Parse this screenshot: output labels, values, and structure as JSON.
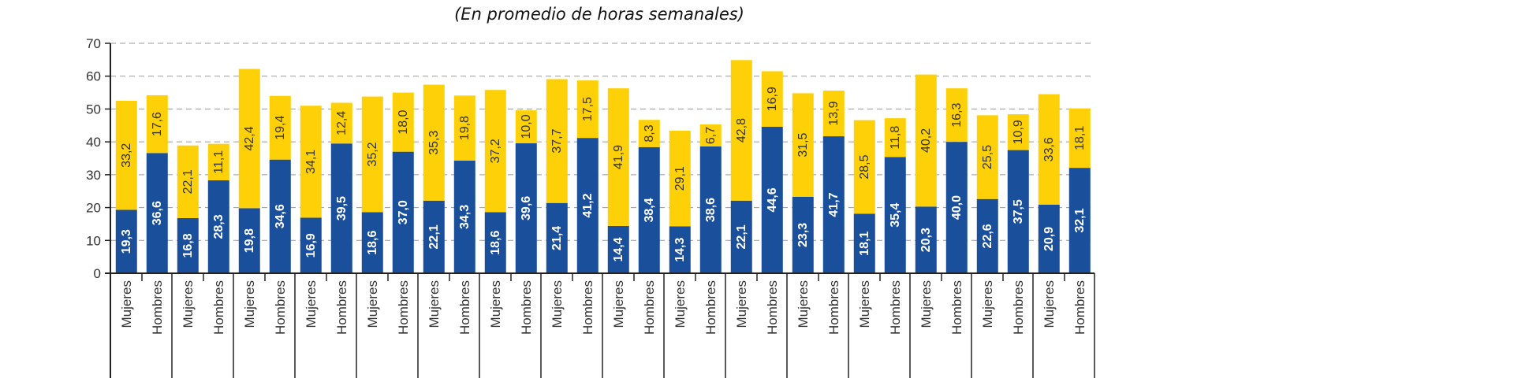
{
  "chart_data": {
    "type": "bar",
    "stacked": true,
    "title": "(En promedio de horas semanales)",
    "categories": [
      "Mujeres",
      "Hombres",
      "Mujeres",
      "Hombres",
      "Mujeres",
      "Hombres",
      "Mujeres",
      "Hombres",
      "Mujeres",
      "Hombres",
      "Mujeres",
      "Hombres",
      "Mujeres",
      "Hombres",
      "Mujeres",
      "Hombres",
      "Mujeres",
      "Hombres",
      "Mujeres",
      "Hombres",
      "Mujeres",
      "Hombres",
      "Mujeres",
      "Hombres",
      "Mujeres",
      "Hombres",
      "Mujeres",
      "Hombres",
      "Mujeres",
      "Hombres",
      "Mujeres",
      "Hombres"
    ],
    "series": [
      {
        "color": "#1a4f9c",
        "values": [
          19.3,
          36.6,
          16.8,
          28.3,
          19.8,
          34.6,
          16.9,
          39.5,
          18.6,
          37.0,
          22.1,
          34.3,
          18.6,
          39.6,
          21.4,
          41.2,
          14.4,
          38.4,
          14.3,
          38.6,
          22.1,
          44.6,
          23.3,
          41.7,
          18.1,
          35.4,
          20.3,
          40.0,
          22.6,
          37.5,
          20.9,
          32.1
        ]
      },
      {
        "color": "#fdd008",
        "values": [
          33.2,
          17.6,
          22.1,
          11.1,
          42.4,
          19.4,
          34.1,
          12.4,
          35.2,
          18.0,
          35.3,
          19.8,
          37.2,
          10.0,
          37.7,
          17.5,
          41.9,
          8.3,
          29.1,
          6.7,
          42.8,
          16.9,
          31.5,
          13.9,
          28.5,
          11.8,
          40.2,
          16.3,
          25.5,
          10.9,
          33.6,
          18.1
        ]
      }
    ],
    "yticks": [
      0,
      10,
      20,
      30,
      40,
      50,
      60,
      70
    ],
    "ylim": [
      0,
      70
    ],
    "grid": "horizontal dashed",
    "decimal_separator": ","
  }
}
